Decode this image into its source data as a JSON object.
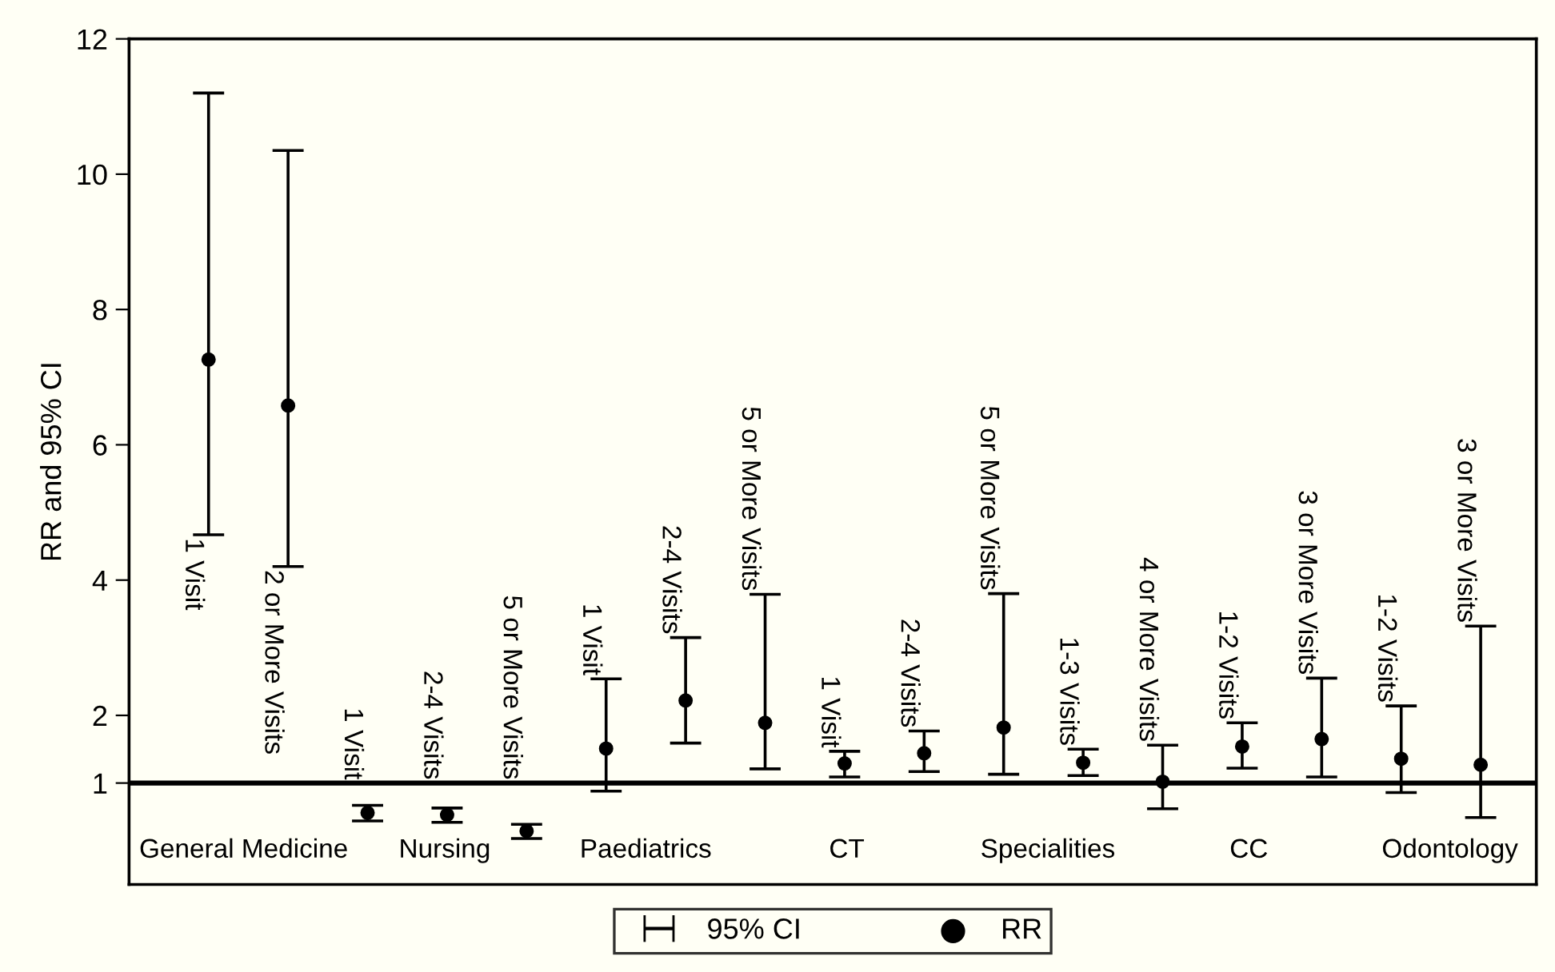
{
  "chart_data": {
    "type": "scatter",
    "ylabel": "RR and 95% CI",
    "categories": [
      "1 Visit",
      "2 or More Visits",
      "1 Visit",
      "2-4 Visits",
      "5 or More Visits",
      "1 Visit",
      "2-4 Visits",
      "5 or More Visits",
      "1 Visit",
      "2-4 Visits",
      "5 or More Visits",
      "1-3 Visits",
      "4 or More Visits",
      "1-2 Visits",
      "3 or More Visits",
      "1-2 Visits",
      "3 or More Visits"
    ],
    "series": [
      {
        "name": "RR",
        "color": "#000000",
        "values": [
          7.26,
          6.58,
          0.56,
          0.53,
          0.29,
          1.51,
          2.22,
          1.89,
          1.29,
          1.44,
          1.82,
          1.3,
          1.02,
          1.54,
          1.65,
          1.36,
          1.27
        ],
        "errors": [
          [
            4.67,
            11.2
          ],
          [
            4.2,
            10.35
          ],
          [
            0.44,
            0.67
          ],
          [
            0.42,
            0.63
          ],
          [
            0.18,
            0.39
          ],
          [
            0.88,
            2.54
          ],
          [
            1.59,
            3.15
          ],
          [
            1.21,
            3.79
          ],
          [
            1.09,
            1.47
          ],
          [
            1.17,
            1.77
          ],
          [
            1.13,
            3.8
          ],
          [
            1.11,
            1.5
          ],
          [
            0.62,
            1.56
          ],
          [
            1.22,
            1.89
          ],
          [
            1.09,
            2.55
          ],
          [
            0.86,
            2.14
          ],
          [
            0.49,
            3.32
          ]
        ]
      }
    ],
    "annotations": [
      "95% CI",
      "General Medicine",
      "Nursing",
      "Paediatrics",
      "CT",
      "Specialities",
      "CC",
      "Odontology"
    ],
    "ylim": [
      -0.5,
      12
    ],
    "yticks": [
      1,
      2,
      4,
      6,
      8,
      10,
      12
    ],
    "ref_lines": [
      {
        "axis": "y",
        "value": 1,
        "color": "#000000",
        "line_style": "solid"
      }
    ],
    "marker": "circle",
    "grid": false,
    "legend": "bottom"
  }
}
